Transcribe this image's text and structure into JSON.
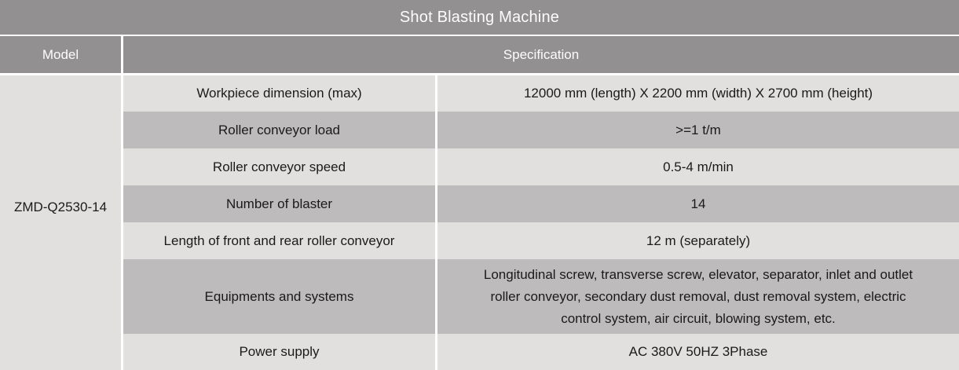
{
  "table": {
    "title": "Shot Blasting Machine",
    "headers": {
      "model": "Model",
      "specification": "Specification"
    },
    "model": "ZMD-Q2530-14",
    "rows": [
      {
        "param": "Workpiece dimension (max)",
        "value": "12000 mm (length) X 2200 mm (width) X 2700 mm (height)"
      },
      {
        "param": "Roller conveyor load",
        "value": ">=1 t/m"
      },
      {
        "param": "Roller conveyor speed",
        "value": "0.5-4 m/min"
      },
      {
        "param": "Number of blaster",
        "value": "14"
      },
      {
        "param": "Length of front and rear roller conveyor",
        "value": "12 m (separately)"
      },
      {
        "param": "Equipments and systems",
        "value": "Longitudinal screw, transverse screw, elevator, separator, inlet and outlet roller conveyor, secondary dust removal, dust removal system, electric control system, air circuit, blowing system, etc."
      },
      {
        "param": "Power supply",
        "value": "AC 380V 50HZ 3Phase"
      }
    ]
  },
  "colors": {
    "header_bg": "#929090",
    "header_text": "#fdfdfd",
    "row_light": "#e2e0df",
    "row_dark": "#bdbbbb",
    "body_text": "#1a1a1a",
    "separator": "#ffffff"
  }
}
